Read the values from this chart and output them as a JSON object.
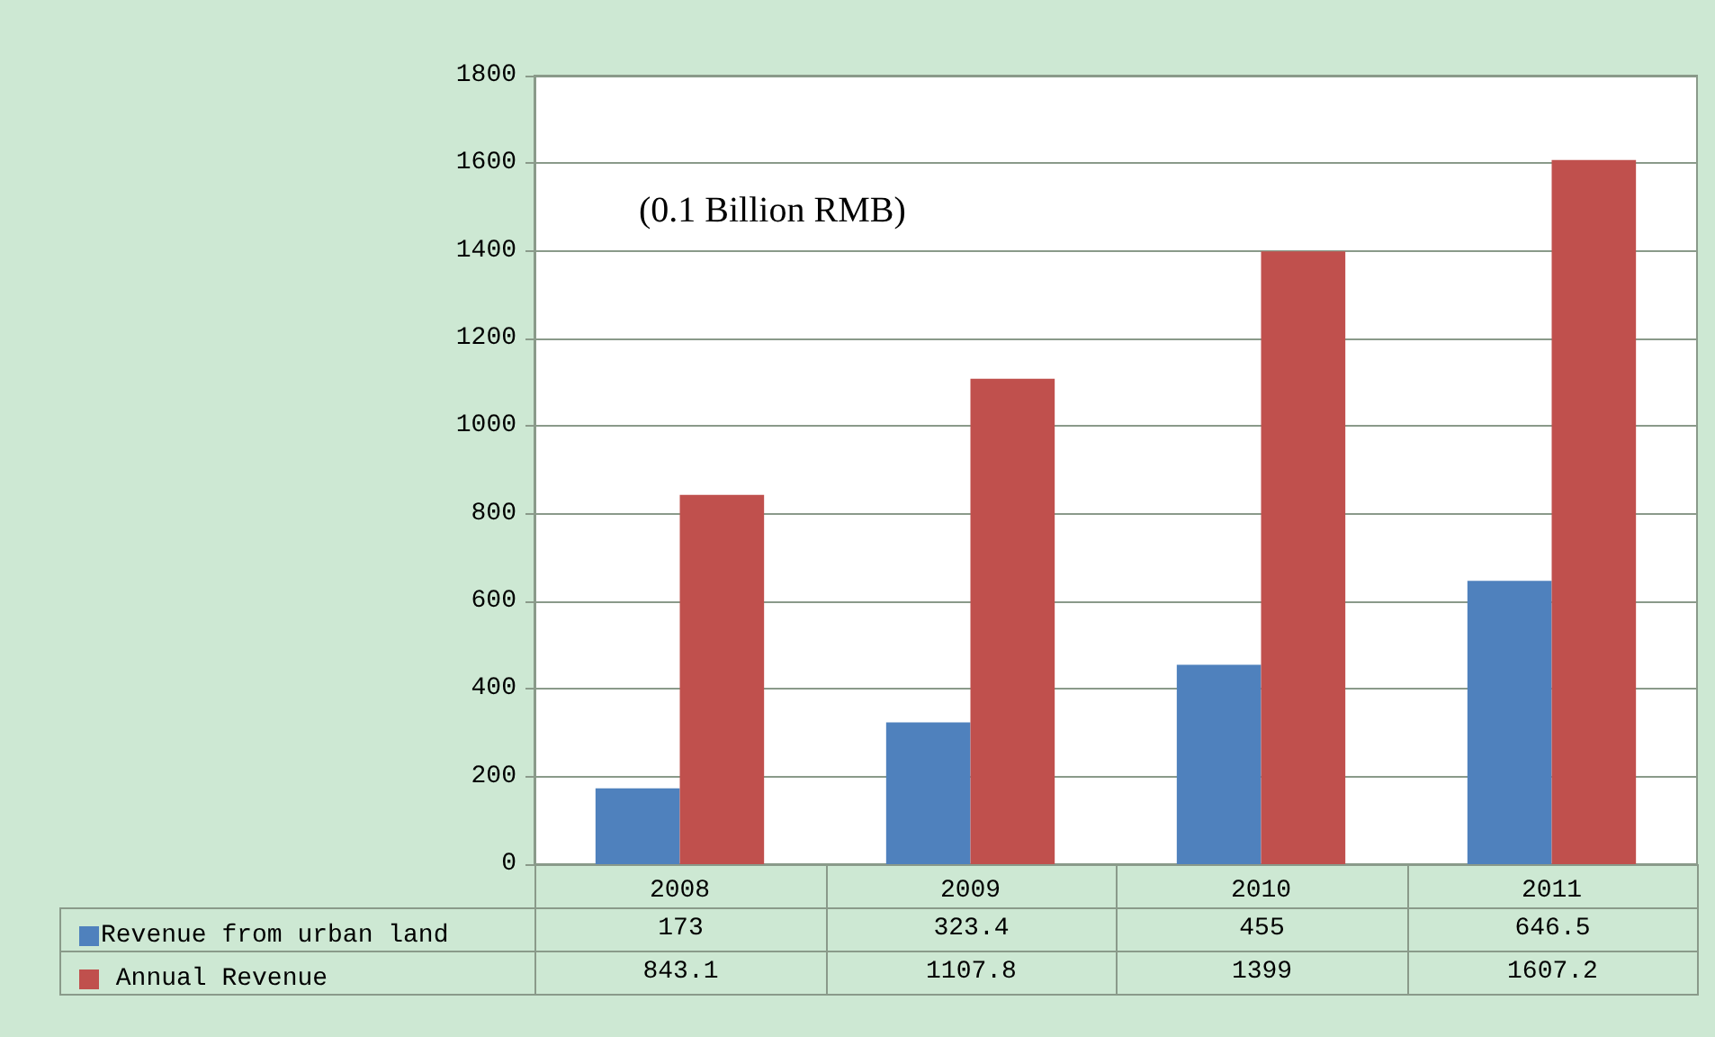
{
  "chart_data": {
    "type": "bar",
    "annotations": [
      "(0.1 Billion RMB)"
    ],
    "categories": [
      "2008",
      "2009",
      "2010",
      "2011"
    ],
    "series": [
      {
        "name": "Revenue from urban land",
        "color": "#4f81bd",
        "values": [
          173,
          323.4,
          455,
          646.5
        ]
      },
      {
        "name": " Annual Revenue",
        "color": "#c0504d",
        "values": [
          843.1,
          1107.8,
          1399,
          1607.2
        ]
      }
    ],
    "ylim": [
      0,
      1800
    ],
    "yticks": [
      0,
      200,
      400,
      600,
      800,
      1000,
      1200,
      1400,
      1600,
      1800
    ],
    "grid": "y",
    "legend": "bottom left",
    "data_labels": true
  }
}
